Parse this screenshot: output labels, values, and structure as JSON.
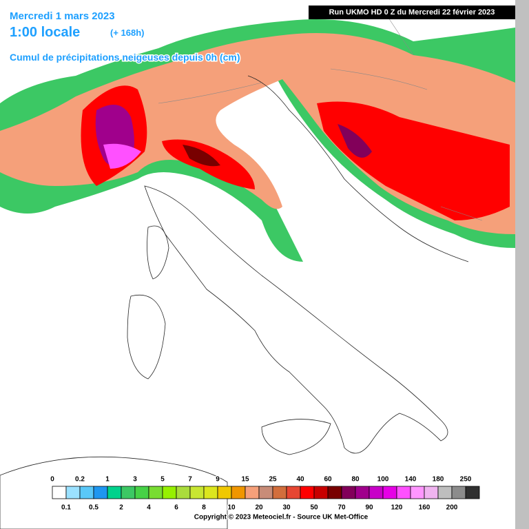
{
  "header": {
    "date": "Mercredi 1 mars 2023",
    "time": "1:00 locale",
    "lead": "(+ 168h)",
    "subtitle": "Cumul de précipitations neigeuses depuis 0h (cm)",
    "run": "Run UKMO HD 0 Z du Mercredi 22 février 2023"
  },
  "legend": {
    "items": [
      {
        "label": "0",
        "color": "#ffffff"
      },
      {
        "label": "0.1",
        "color": "#9be1ff"
      },
      {
        "label": "0.2",
        "color": "#5ac8f8"
      },
      {
        "label": "0.5",
        "color": "#1e96f0"
      },
      {
        "label": "1",
        "color": "#00d28c"
      },
      {
        "label": "2",
        "color": "#3cc864"
      },
      {
        "label": "3",
        "color": "#46d246"
      },
      {
        "label": "4",
        "color": "#78dc32"
      },
      {
        "label": "5",
        "color": "#96f000"
      },
      {
        "label": "6",
        "color": "#aadc3c"
      },
      {
        "label": "7",
        "color": "#c8e632"
      },
      {
        "label": "8",
        "color": "#dce61e"
      },
      {
        "label": "9",
        "color": "#f0c800"
      },
      {
        "label": "10",
        "color": "#f09600"
      },
      {
        "label": "15",
        "color": "#f5a07a"
      },
      {
        "label": "20",
        "color": "#c88c78"
      },
      {
        "label": "25",
        "color": "#d26e3c"
      },
      {
        "label": "30",
        "color": "#e64632"
      },
      {
        "label": "40",
        "color": "#ff0000"
      },
      {
        "label": "50",
        "color": "#c80000"
      },
      {
        "label": "60",
        "color": "#780000"
      },
      {
        "label": "70",
        "color": "#82005a"
      },
      {
        "label": "80",
        "color": "#a0008c"
      },
      {
        "label": "90",
        "color": "#c800c8"
      },
      {
        "label": "100",
        "color": "#e600e6"
      },
      {
        "label": "120",
        "color": "#ff50ff"
      },
      {
        "label": "140",
        "color": "#ff96ff"
      },
      {
        "label": "160",
        "color": "#f0b4f0"
      },
      {
        "label": "180",
        "color": "#bebebe"
      },
      {
        "label": "200",
        "color": "#8c8c8c"
      },
      {
        "label": "250",
        "color": "#303030"
      }
    ]
  },
  "footer": {
    "copyright": "Copyright © 2023 Meteociel.fr - Source UK Met-Office"
  }
}
